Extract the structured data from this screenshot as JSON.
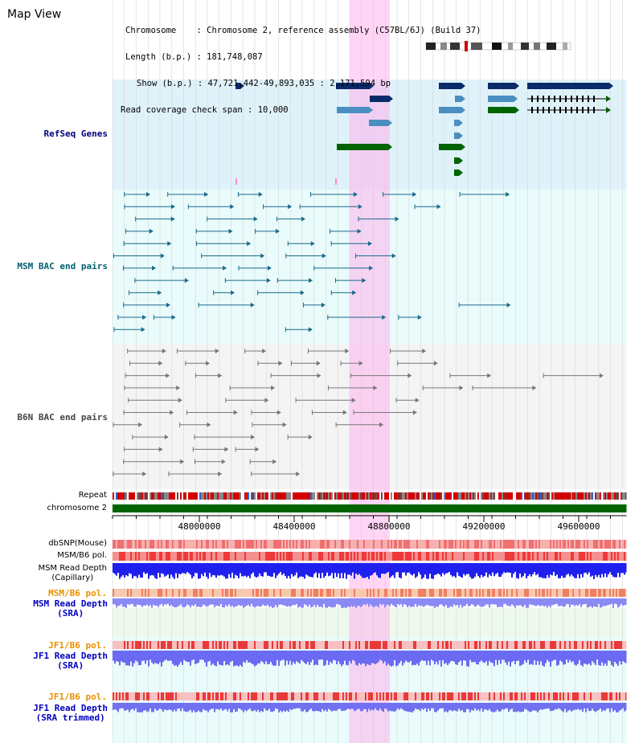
{
  "title": "Map View",
  "info": {
    "chromosome": "Chromosome    : Chromosome 2, reference assembly (C57BL/6J) (Build 37)",
    "length": "Length (b.p.) : 181,748,087",
    "show": "Show (b.p.) : 47,721,442-49,893,035 : 2,171,594 bp",
    "coverage": "Read coverage check span : 10,000"
  },
  "tracks": {
    "refseq": "RefSeq Genes",
    "msm_bac": "MSM BAC end pairs",
    "b6n_bac": "B6N BAC end pairs",
    "repeat": "Repeat",
    "chromosome": "chromosome 2",
    "dbsnp": "dbSNP(Mouse)",
    "msm_b6_pol": "MSM/B6 pol.",
    "msm_depth_cap_1": "MSM Read Depth",
    "msm_depth_cap_2": "(Capillary)",
    "msm_b6_pol_2": "MSM/B6 pol.",
    "msm_depth_sra_1": "MSM Read Depth",
    "msm_depth_sra_2": "(SRA)",
    "jf1_pol_1": "JF1/B6 pol.",
    "jf1_depth_sra_1": "JF1 Read Depth",
    "jf1_depth_sra_2": "(SRA)",
    "jf1_pol_2": "JF1/B6 pol.",
    "jf1_depth_trim_1": "JF1 Read Depth",
    "jf1_depth_trim_2": "(SRA trimmed)"
  },
  "axis_ticks": [
    "48000000",
    "48400000",
    "48800000",
    "49200000",
    "49600000"
  ],
  "colors": {
    "refseq_bg": "#dff2fa",
    "msm_bg": "#e9fbfb",
    "b6n_bg": "#f5f5f5",
    "highlight": "#ffb3ec",
    "navy": "#0a2a6a",
    "steel": "#4a8fc0",
    "green": "#006400",
    "teal": "#1a6a8a",
    "gray": "#777777",
    "refseq_label": "#000080",
    "msm_label": "#006070",
    "b6n_label": "#444444",
    "orange_label": "#e89000",
    "blue_label": "#0000c0"
  }
}
